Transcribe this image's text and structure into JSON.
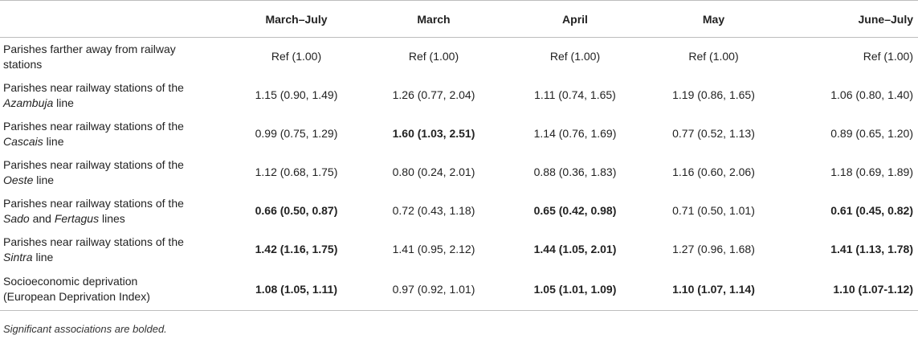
{
  "table": {
    "headers": [
      "",
      "March–July",
      "March",
      "April",
      "May",
      "June–July"
    ],
    "rows": [
      {
        "label_pre": "Parishes farther away from railway",
        "label_em": "stations",
        "label_em_italic": false,
        "label_mid": "",
        "label_em2": "",
        "label_post": "",
        "values": [
          "Ref (1.00)",
          "Ref (1.00)",
          "Ref (1.00)",
          "Ref (1.00)",
          "Ref (1.00)"
        ],
        "bold": [
          false,
          false,
          false,
          false,
          false
        ]
      },
      {
        "label_pre": "Parishes near railway stations of the",
        "label_em": "Azambuja",
        "label_em_italic": true,
        "label_mid": " line",
        "label_em2": "",
        "label_post": "",
        "values": [
          "1.15 (0.90, 1.49)",
          "1.26 (0.77, 2.04)",
          "1.11 (0.74, 1.65)",
          "1.19 (0.86, 1.65)",
          "1.06 (0.80, 1.40)"
        ],
        "bold": [
          false,
          false,
          false,
          false,
          false
        ]
      },
      {
        "label_pre": "Parishes near railway stations of the",
        "label_em": "Cascais",
        "label_em_italic": true,
        "label_mid": " line",
        "label_em2": "",
        "label_post": "",
        "values": [
          "0.99 (0.75, 1.29)",
          "1.60 (1.03, 2.51)",
          "1.14 (0.76, 1.69)",
          "0.77 (0.52, 1.13)",
          "0.89 (0.65, 1.20)"
        ],
        "bold": [
          false,
          true,
          false,
          false,
          false
        ]
      },
      {
        "label_pre": "Parishes near railway stations of the",
        "label_em": "Oeste",
        "label_em_italic": true,
        "label_mid": " line",
        "label_em2": "",
        "label_post": "",
        "values": [
          "1.12 (0.68, 1.75)",
          "0.80 (0.24, 2.01)",
          "0.88 (0.36, 1.83)",
          "1.16 (0.60, 2.06)",
          "1.18 (0.69, 1.89)"
        ],
        "bold": [
          false,
          false,
          false,
          false,
          false
        ]
      },
      {
        "label_pre": "Parishes near railway stations of the",
        "label_em": "Sado",
        "label_em_italic": true,
        "label_mid": " and ",
        "label_em2": "Fertagus",
        "label_post": " lines",
        "values": [
          "0.66 (0.50, 0.87)",
          "0.72 (0.43, 1.18)",
          "0.65 (0.42, 0.98)",
          "0.71 (0.50, 1.01)",
          "0.61 (0.45, 0.82)"
        ],
        "bold": [
          true,
          false,
          true,
          false,
          true
        ]
      },
      {
        "label_pre": "Parishes near railway stations of the",
        "label_em": "Sintra",
        "label_em_italic": true,
        "label_mid": " line",
        "label_em2": "",
        "label_post": "",
        "values": [
          "1.42 (1.16, 1.75)",
          "1.41 (0.95, 2.12)",
          "1.44 (1.05, 2.01)",
          "1.27 (0.96, 1.68)",
          "1.41 (1.13, 1.78)"
        ],
        "bold": [
          true,
          false,
          true,
          false,
          true
        ]
      },
      {
        "label_pre": "Socioeconomic deprivation",
        "label_em": "(European Deprivation Index)",
        "label_em_italic": false,
        "label_mid": "",
        "label_em2": "",
        "label_post": "",
        "values": [
          "1.08 (1.05, 1.11)",
          "0.97 (0.92, 1.01)",
          "1.05 (1.01, 1.09)",
          "1.10 (1.07, 1.14)",
          "1.10 (1.07-1.12)"
        ],
        "bold": [
          true,
          false,
          true,
          true,
          true
        ]
      }
    ]
  },
  "footnote": "Significant associations are bolded."
}
